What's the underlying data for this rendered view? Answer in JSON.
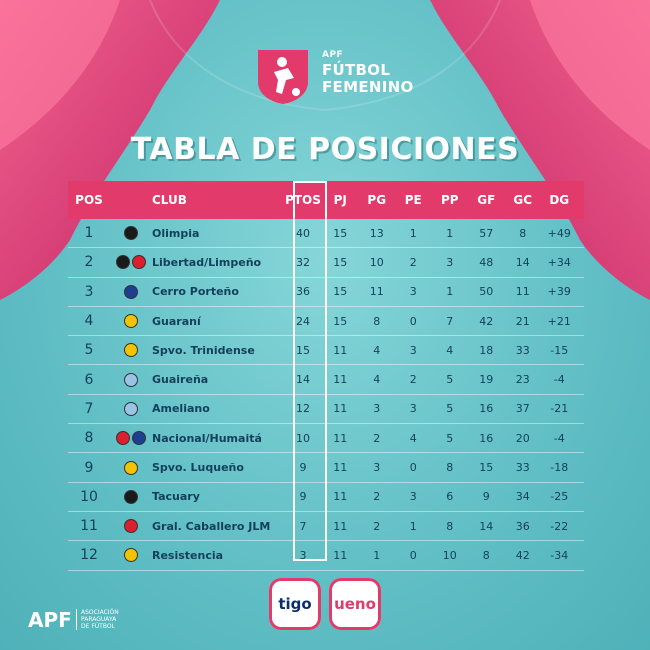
{
  "brand": {
    "logo_small": "APF",
    "logo_line1": "FÚTBOL",
    "logo_line2": "FEMENINO"
  },
  "title": "TABLA DE POSICIONES",
  "colors": {
    "accent": "#e23a6a",
    "background": "#62c0c6",
    "text": "#143f5a"
  },
  "table": {
    "headers": {
      "pos": "POS",
      "club": "CLUB",
      "ptos": "PTOS",
      "pj": "PJ",
      "pg": "PG",
      "pe": "PE",
      "pp": "PP",
      "gf": "GF",
      "gc": "GC",
      "dg": "DG"
    },
    "rows": [
      {
        "pos": "1",
        "club": "Olimpia",
        "ptos": "40",
        "pj": "15",
        "pg": "13",
        "pe": "1",
        "pp": "1",
        "gf": "57",
        "gc": "8",
        "dg": "+49"
      },
      {
        "pos": "2",
        "club": "Libertad/Limpeño",
        "ptos": "32",
        "pj": "15",
        "pg": "10",
        "pe": "2",
        "pp": "3",
        "gf": "48",
        "gc": "14",
        "dg": "+34"
      },
      {
        "pos": "3",
        "club": "Cerro Porteño",
        "ptos": "36",
        "pj": "15",
        "pg": "11",
        "pe": "3",
        "pp": "1",
        "gf": "50",
        "gc": "11",
        "dg": "+39"
      },
      {
        "pos": "4",
        "club": "Guaraní",
        "ptos": "24",
        "pj": "15",
        "pg": "8",
        "pe": "0",
        "pp": "7",
        "gf": "42",
        "gc": "21",
        "dg": "+21"
      },
      {
        "pos": "5",
        "club": "Spvo. Trinidense",
        "ptos": "15",
        "pj": "11",
        "pg": "4",
        "pe": "3",
        "pp": "4",
        "gf": "18",
        "gc": "33",
        "dg": "-15"
      },
      {
        "pos": "6",
        "club": "Guaireña",
        "ptos": "14",
        "pj": "11",
        "pg": "4",
        "pe": "2",
        "pp": "5",
        "gf": "19",
        "gc": "23",
        "dg": "-4"
      },
      {
        "pos": "7",
        "club": "Ameliano",
        "ptos": "12",
        "pj": "11",
        "pg": "3",
        "pe": "3",
        "pp": "5",
        "gf": "16",
        "gc": "37",
        "dg": "-21"
      },
      {
        "pos": "8",
        "club": "Nacional/Humaitá",
        "ptos": "10",
        "pj": "11",
        "pg": "2",
        "pe": "4",
        "pp": "5",
        "gf": "16",
        "gc": "20",
        "dg": "-4"
      },
      {
        "pos": "9",
        "club": "Spvo. Luqueño",
        "ptos": "9",
        "pj": "11",
        "pg": "3",
        "pe": "0",
        "pp": "8",
        "gf": "15",
        "gc": "33",
        "dg": "-18"
      },
      {
        "pos": "10",
        "club": "Tacuary",
        "ptos": "9",
        "pj": "11",
        "pg": "2",
        "pe": "3",
        "pp": "6",
        "gf": "9",
        "gc": "34",
        "dg": "-25"
      },
      {
        "pos": "11",
        "club": "Gral. Caballero JLM",
        "ptos": "7",
        "pj": "11",
        "pg": "2",
        "pe": "1",
        "pp": "8",
        "gf": "14",
        "gc": "36",
        "dg": "-22"
      },
      {
        "pos": "12",
        "club": "Resistencia",
        "ptos": "3",
        "pj": "11",
        "pg": "1",
        "pe": "0",
        "pp": "10",
        "gf": "8",
        "gc": "42",
        "dg": "-34"
      }
    ],
    "crests": [
      [
        "#1a1a1a"
      ],
      [
        "#1a1a1a",
        "#d9202f"
      ],
      [
        "#1d3f8f"
      ],
      [
        "#f2c300"
      ],
      [
        "#f2c300"
      ],
      [
        "#9bc3e6"
      ],
      [
        "#9bc3e6"
      ],
      [
        "#d9202f",
        "#1d3f8f"
      ],
      [
        "#f2c300"
      ],
      [
        "#1a1a1a"
      ],
      [
        "#d9202f"
      ],
      [
        "#f2c300"
      ]
    ]
  },
  "footer": {
    "apf": "APF",
    "apf_sub1": "ASOCIACIÓN",
    "apf_sub2": "PARAGUAYA",
    "apf_sub3": "DE FÚTBOL",
    "sponsor1": "tigo",
    "sponsor2": "ueno"
  }
}
